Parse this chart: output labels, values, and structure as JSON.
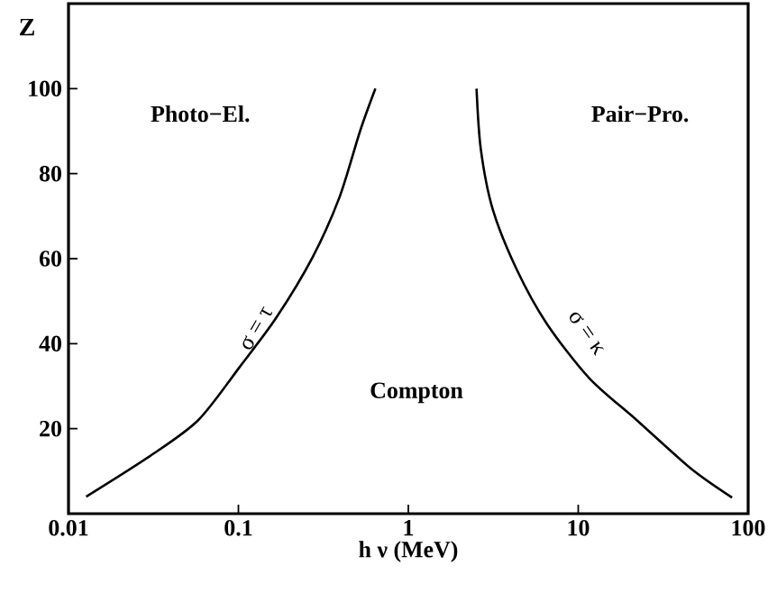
{
  "chart_data": {
    "type": "line",
    "xlabel": "h ν (MeV)",
    "ylabel": "Z",
    "log": "x",
    "xlim": [
      0.01,
      100
    ],
    "ylim": [
      0,
      120
    ],
    "xticks": [
      0.01,
      0.1,
      1,
      10,
      100
    ],
    "yticks": [
      20,
      40,
      60,
      80,
      100
    ],
    "grid": false,
    "marker": "none",
    "line_style": "solid",
    "series": [
      {
        "color": "#000000",
        "x": [
          0.0127,
          0.03,
          0.058,
          0.103,
          0.167,
          0.273,
          0.394,
          0.52,
          0.64
        ],
        "values": [
          4,
          13.5,
          22,
          34.8,
          46.1,
          60.3,
          74.5,
          90,
          100
        ]
      },
      {
        "color": "#000000",
        "x": [
          2.52,
          2.67,
          3.14,
          4.35,
          6.53,
          11.6,
          22.1,
          46.1,
          80.4
        ],
        "values": [
          100,
          85.8,
          71.6,
          57.4,
          44.7,
          31.9,
          22,
          10.6,
          3.8
        ]
      }
    ],
    "annotations": [
      "Photo−El.",
      "Pair−Pro.",
      "Compton",
      {
        "text": "σ = τ",
        "x": 0.167,
        "y": 46.1
      },
      {
        "text": "σ = κ",
        "x": 6.53,
        "y": 44.7
      }
    ]
  }
}
